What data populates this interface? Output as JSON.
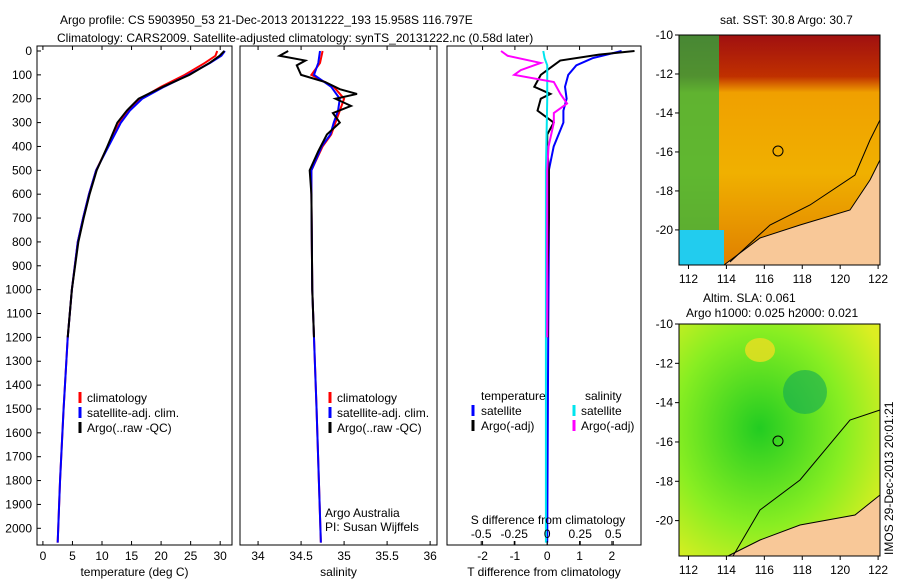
{
  "title_line1": "Argo profile: CS 5903950_53 21-Dec-2013 20131222_193 15.958S 116.797E",
  "title_line2": "Climatology: CARS2009. Satellite-adjusted climatology: synTS_20131222.nc (0.58d later)",
  "credit": "IMOS 29-Dec-2013 20:01:21",
  "chart_data": [
    {
      "type": "line",
      "id": "temp",
      "xlabel": "temperature (deg C)",
      "ylabel": "",
      "xlim": [
        -1,
        32
      ],
      "ylim": [
        0,
        2070
      ],
      "xticks": [
        0,
        5,
        10,
        15,
        20,
        25,
        30
      ],
      "yticks": [
        0,
        100,
        200,
        300,
        400,
        500,
        600,
        700,
        800,
        900,
        1000,
        1100,
        1200,
        1300,
        1400,
        1500,
        1600,
        1700,
        1800,
        1900,
        2000
      ],
      "legend": [
        "climatology",
        "satellite-adj. clim.",
        "Argo(..raw -QC)"
      ],
      "series": [
        {
          "name": "climatology",
          "color": "#ff0000",
          "depth": [
            0,
            20,
            50,
            100,
            150,
            200,
            250,
            300,
            400,
            500,
            600,
            700,
            800,
            1000,
            1200,
            1500,
            1800,
            2060
          ],
          "values": [
            29.5,
            29.2,
            27.4,
            24,
            20,
            16.5,
            14.5,
            13,
            11,
            9,
            7.8,
            6.8,
            5.9,
            4.9,
            4.2,
            3.5,
            2.9,
            2.5
          ]
        },
        {
          "name": "satellite-adj. clim.",
          "color": "#0000ff",
          "depth": [
            0,
            20,
            50,
            100,
            150,
            200,
            250,
            300,
            400,
            500,
            600,
            700,
            800,
            1000,
            1200,
            1500,
            1800,
            2060
          ],
          "values": [
            30.8,
            30.2,
            28.3,
            24.6,
            20.5,
            16.8,
            14.7,
            13.2,
            11.1,
            9,
            7.8,
            6.8,
            5.9,
            4.9,
            4.2,
            3.5,
            2.9,
            2.5
          ]
        },
        {
          "name": "Argo(..raw -QC)",
          "color": "#000000",
          "depth": [
            0,
            20,
            50,
            100,
            150,
            200,
            250,
            300,
            400,
            500,
            600,
            700,
            800,
            1000,
            1200
          ],
          "values": [
            30.7,
            29.9,
            28.2,
            24.8,
            20.3,
            16.2,
            14.2,
            12.6,
            10.9,
            9.1,
            7.9,
            6.9,
            6.0,
            4.9,
            4.2
          ]
        }
      ]
    },
    {
      "type": "line",
      "id": "sal",
      "xlabel": "salinity",
      "xlim": [
        33.79,
        36.08
      ],
      "ylim": [
        0,
        2070
      ],
      "xticks": [
        34,
        34.5,
        35,
        35.5,
        36
      ],
      "legend": [
        "climatology",
        "satellite-adj. clim.",
        "Argo(..raw -QC)"
      ],
      "annotation": [
        "Argo Australia",
        "PI: Susan Wijffels"
      ],
      "series": [
        {
          "name": "climatology",
          "color": "#ff0000",
          "depth": [
            0,
            50,
            100,
            150,
            200,
            250,
            300,
            350,
            400,
            500,
            600,
            1000,
            1500,
            2060
          ],
          "values": [
            34.75,
            34.72,
            34.62,
            34.88,
            35.0,
            34.95,
            34.9,
            34.85,
            34.75,
            34.62,
            34.62,
            34.63,
            34.68,
            34.73
          ]
        },
        {
          "name": "satellite-adj. clim.",
          "color": "#0000ff",
          "depth": [
            0,
            50,
            100,
            150,
            200,
            250,
            300,
            350,
            400,
            500,
            600,
            1000,
            1500,
            2060
          ],
          "values": [
            34.72,
            34.7,
            34.65,
            34.85,
            34.95,
            34.93,
            34.88,
            34.84,
            34.74,
            34.62,
            34.62,
            34.63,
            34.68,
            34.73
          ]
        },
        {
          "name": "Argo(..raw -QC)",
          "color": "#000000",
          "depth": [
            0,
            20,
            40,
            60,
            100,
            130,
            160,
            180,
            200,
            230,
            260,
            300,
            350,
            420,
            500,
            600,
            1000,
            1200
          ],
          "values": [
            34.35,
            34.25,
            34.55,
            34.45,
            34.5,
            34.78,
            34.95,
            35.15,
            34.9,
            35.08,
            34.87,
            34.95,
            34.8,
            34.7,
            34.6,
            34.62,
            34.63,
            34.65
          ]
        }
      ]
    },
    {
      "type": "line",
      "id": "diff",
      "xlabel": "T difference from climatology",
      "xlabel2": "S difference from climatology",
      "xlim": [
        -3.1,
        2.9
      ],
      "ylim": [
        0,
        2070
      ],
      "xticks": [
        -2,
        -1,
        0,
        1,
        2
      ],
      "xticks2": [
        -0.5,
        -0.25,
        0,
        0.25,
        0.5
      ],
      "legend_t": [
        "temperature",
        "satellite",
        "Argo(-adj)"
      ],
      "legend_s": [
        "salinity",
        "satellite",
        "Argo(-adj)"
      ],
      "series": [
        {
          "name": "T satellite",
          "color": "#0000ff",
          "scale": "T",
          "depth": [
            0,
            30,
            60,
            100,
            150,
            200,
            250,
            300,
            400,
            500,
            800,
            1200,
            2060
          ],
          "values": [
            2.3,
            1.4,
            0.9,
            0.65,
            0.55,
            0.6,
            0.5,
            0.5,
            0.2,
            0.05,
            0.05,
            0.03,
            0.0
          ]
        },
        {
          "name": "T Argo(-adj)",
          "color": "#000000",
          "scale": "T",
          "depth": [
            0,
            15,
            40,
            70,
            100,
            150,
            180,
            200,
            250,
            300,
            350,
            400,
            500,
            700,
            1000,
            1200
          ],
          "values": [
            2.7,
            1.6,
            0.4,
            0.1,
            -0.2,
            -0.4,
            0.1,
            -0.2,
            -0.3,
            0.2,
            0.0,
            0.0,
            0.05,
            0.05,
            0.0,
            0.02
          ]
        },
        {
          "name": "S satellite",
          "color": "#00e5ee",
          "scale": "S",
          "depth": [
            0,
            30,
            60,
            100,
            200,
            500,
            2060
          ],
          "values": [
            -0.03,
            -0.02,
            0.0,
            0.0,
            0.0,
            -0.01,
            -0.01
          ]
        },
        {
          "name": "S Argo(-adj)",
          "color": "#ff00ff",
          "scale": "S",
          "depth": [
            0,
            20,
            50,
            80,
            100,
            130,
            180,
            220,
            260,
            300,
            400,
            500,
            1200
          ],
          "values": [
            -0.35,
            -0.3,
            -0.05,
            -0.2,
            -0.25,
            0.05,
            0.1,
            0.15,
            0.05,
            0.05,
            0.01,
            0.0,
            0.0
          ]
        }
      ]
    },
    {
      "type": "heatmap",
      "id": "sst",
      "title": "sat. SST: 30.8  Argo: 30.7",
      "xticks": [
        112,
        114,
        116,
        118,
        120,
        122
      ],
      "yticks": [
        -10,
        -12,
        -14,
        -16,
        -18,
        -20
      ],
      "xlim": [
        111.5,
        122.1
      ],
      "ylim": [
        -21.8,
        -10
      ],
      "marker": [
        116.797,
        -15.958
      ]
    },
    {
      "type": "heatmap",
      "id": "sla",
      "title": "Altim. SLA: 0.061",
      "subtitle": "Argo h1000: 0.025 h2000: 0.021",
      "xticks": [
        112,
        114,
        116,
        118,
        120,
        122
      ],
      "yticks": [
        -10,
        -12,
        -14,
        -16,
        -18,
        -20
      ],
      "xlim": [
        111.5,
        122.1
      ],
      "ylim": [
        -21.8,
        -10
      ],
      "marker": [
        116.797,
        -15.958
      ]
    }
  ]
}
